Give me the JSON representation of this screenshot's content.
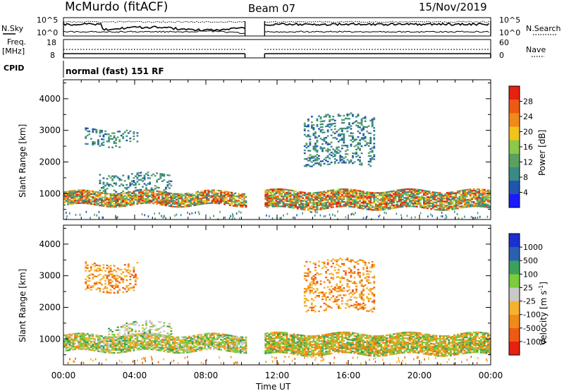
{
  "header": {
    "station": "McMurdo (fitACF)",
    "beam": "Beam 07",
    "date": "15/Nov/2019"
  },
  "top_panels": {
    "nsky_label": "N.Sky",
    "nsearch_label": "N.Search",
    "noise_ticks": [
      "10^5",
      "10^0"
    ],
    "freq_label": "Freq.",
    "freq_unit": "[MHz]",
    "freq_ticks": [
      "18",
      "8"
    ],
    "nave_label": "Nave",
    "nave_ticks": [
      "60",
      "0"
    ],
    "cpid_label": "CPID",
    "cpid_text": "normal (fast) 151 RF"
  },
  "x_axis": {
    "label": "Time UT",
    "ticks": [
      "00:00",
      "04:00",
      "08:00",
      "12:00",
      "16:00",
      "20:00",
      "00:00"
    ],
    "range_hours": [
      0,
      24
    ],
    "data_gap_hours": [
      10.2,
      11.3
    ]
  },
  "chart_data": [
    {
      "type": "heatmap",
      "quantity": "Power",
      "ylabel": "Slant Range [km]",
      "ylim": [
        180,
        4600
      ],
      "yticks": [
        "1000",
        "2000",
        "3000",
        "4000"
      ],
      "colorbar": {
        "label": "Power [dB]",
        "ticks": [
          "28",
          "24",
          "20",
          "16",
          "12",
          "8",
          "4"
        ],
        "colors": [
          "#1a1aff",
          "#2055b0",
          "#3a8a86",
          "#5aa060",
          "#8cc84a",
          "#f2c418",
          "#f08a18",
          "#ee5a14",
          "#e82010"
        ]
      },
      "bands": [
        {
          "t0": 0.0,
          "t1": 10.2,
          "r0": 620,
          "r1": 1050,
          "level": "moderate-high"
        },
        {
          "t0": 11.3,
          "t1": 24.0,
          "r0": 520,
          "r1": 1100,
          "level": "moderate-high"
        },
        {
          "t0": 1.2,
          "t1": 4.2,
          "r0": 2500,
          "r1": 3000,
          "level": "low"
        },
        {
          "t0": 2.0,
          "t1": 6.0,
          "r0": 1050,
          "r1": 1600,
          "level": "low"
        },
        {
          "t0": 13.5,
          "t1": 17.5,
          "r0": 1900,
          "r1": 3500,
          "level": "low"
        }
      ]
    },
    {
      "type": "heatmap",
      "quantity": "Velocity",
      "ylabel": "Slant Range [km]",
      "ylim": [
        180,
        4600
      ],
      "yticks": [
        "1000",
        "2000",
        "3000",
        "4000"
      ],
      "colorbar": {
        "label": "Velocity [m s",
        "label_sup": "-1",
        "label_end": "]",
        "ticks": [
          "1000",
          "500",
          "100",
          "25",
          "-25",
          "-100",
          "-500",
          "-1000"
        ],
        "colors": [
          "#e82010",
          "#ee5a14",
          "#f08a18",
          "#f5b22e",
          "#c8c8c8",
          "#7ccc3c",
          "#3aa05a",
          "#2a60b0",
          "#1a30d0"
        ]
      },
      "bands": [
        {
          "t0": 0.0,
          "t1": 10.2,
          "r0": 600,
          "r1": 1100,
          "level": "green-orange"
        },
        {
          "t0": 11.3,
          "t1": 24.0,
          "r0": 500,
          "r1": 1150,
          "level": "orange-green"
        },
        {
          "t0": 1.2,
          "t1": 4.2,
          "r0": 2500,
          "r1": 3400,
          "level": "orange"
        },
        {
          "t0": 2.5,
          "t1": 6.0,
          "r0": 1000,
          "r1": 1500,
          "level": "grey-green"
        },
        {
          "t0": 13.5,
          "t1": 17.5,
          "r0": 1900,
          "r1": 3500,
          "level": "orange"
        }
      ]
    }
  ]
}
